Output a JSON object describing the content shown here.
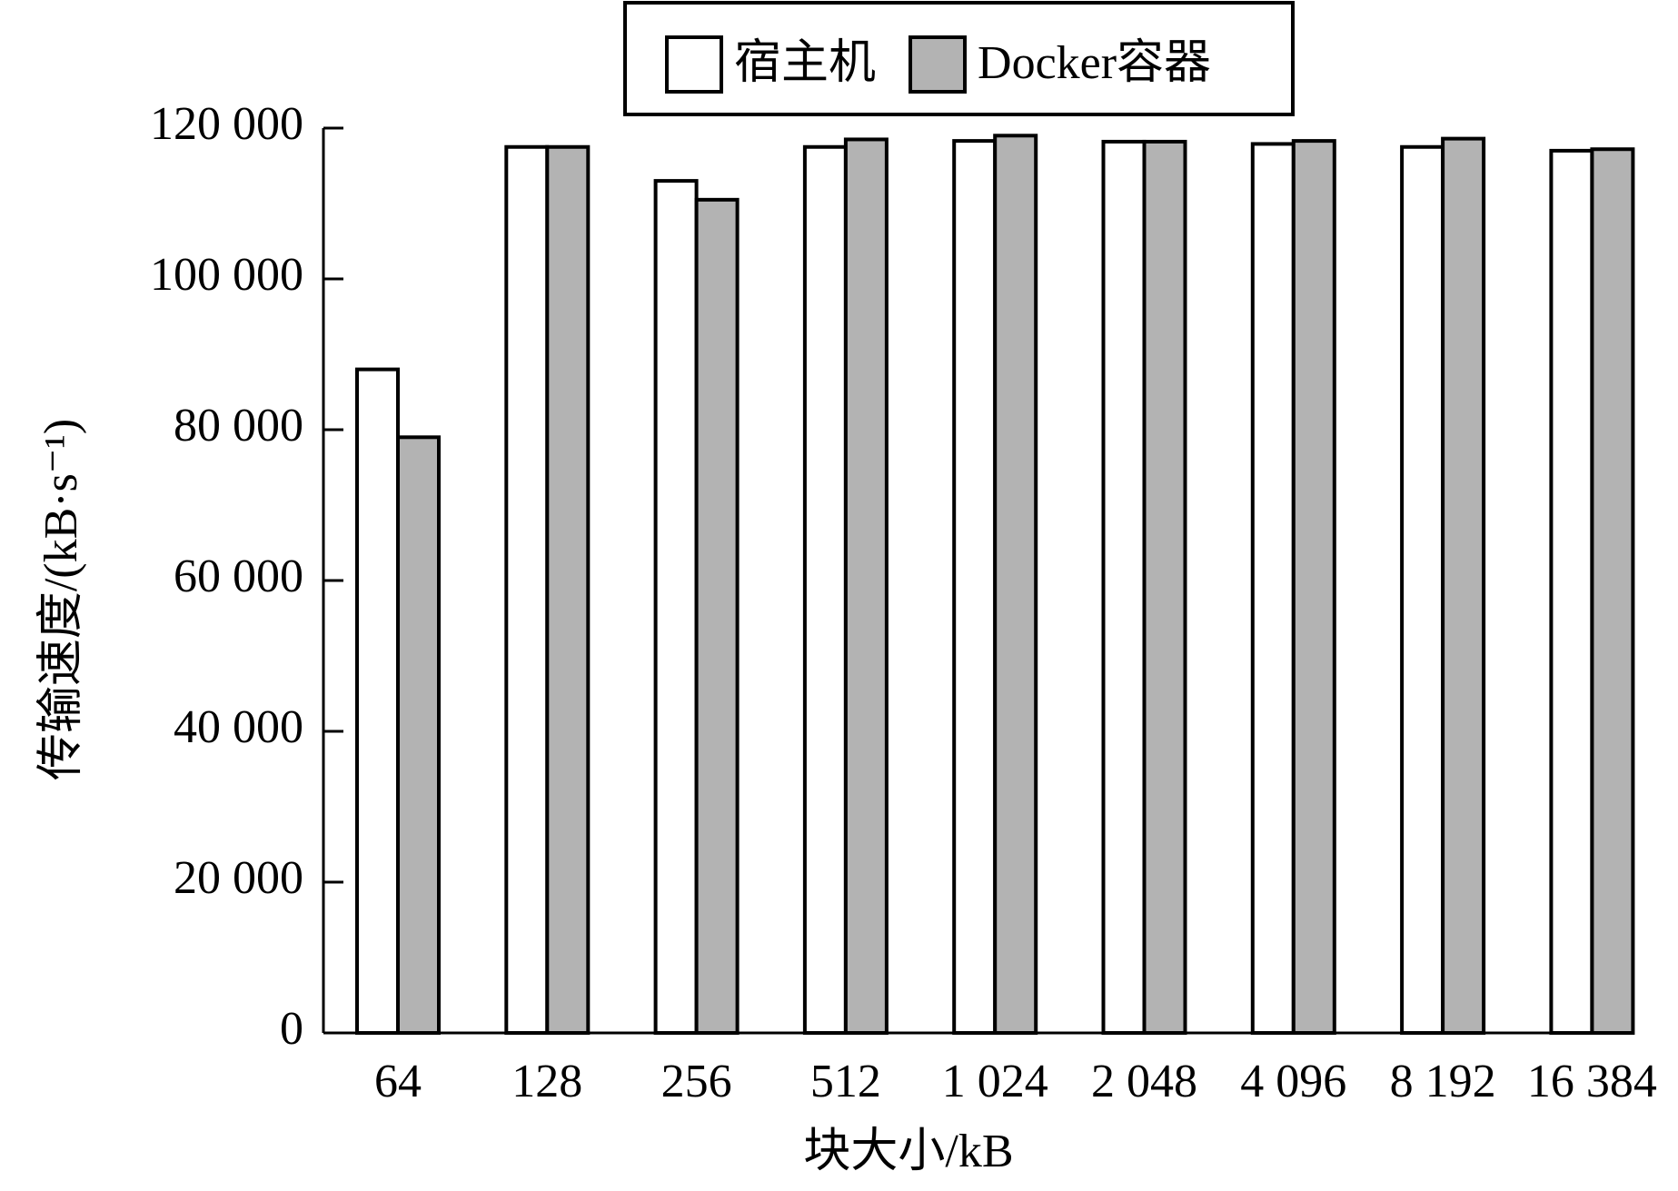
{
  "chart_data": {
    "type": "bar",
    "x_label": "块大小/kB",
    "y_label": "传输速度/(kB·s⁻¹)",
    "categories": [
      "64",
      "128",
      "256",
      "512",
      "1 024",
      "2 048",
      "4 096",
      "8 192",
      "16 384"
    ],
    "series": [
      {
        "name": "宿主机",
        "color": "#ffffff",
        "values": [
          88000,
          117500,
          113000,
          117500,
          118300,
          118200,
          117900,
          117500,
          117000
        ]
      },
      {
        "name": "Docker容器",
        "color": "#b3b3b3",
        "values": [
          79000,
          117500,
          110500,
          118500,
          119000,
          118200,
          118300,
          118600,
          117200
        ]
      }
    ],
    "ylim": [
      0,
      120000
    ],
    "yticks": [
      0,
      {
        "value": 20000,
        "label": "20 000"
      },
      {
        "value": 40000,
        "label": "40 000"
      },
      {
        "value": 60000,
        "label": "60 000"
      },
      {
        "value": 80000,
        "label": "80 000"
      },
      {
        "value": 100000,
        "label": "100 000"
      },
      {
        "value": 120000,
        "label": "120 000"
      }
    ],
    "legend": "top",
    "grid": false
  }
}
